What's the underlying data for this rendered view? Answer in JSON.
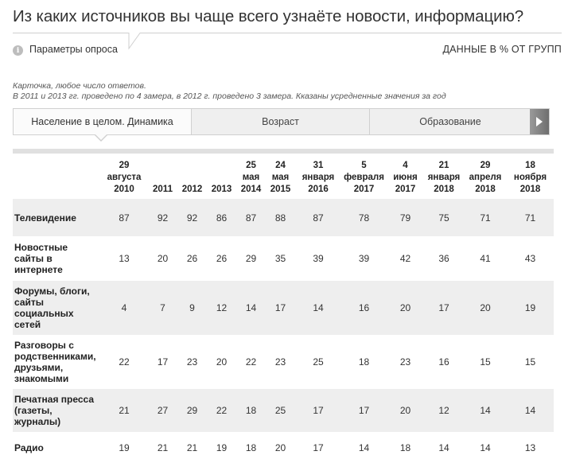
{
  "header": {
    "title": "Из каких источников вы чаще всего узнаёте новости, информацию?"
  },
  "params": {
    "info_icon": "i",
    "label": "Параметры опроса",
    "data_label": "ДАННЫЕ В % ОТ ГРУПП"
  },
  "note": {
    "line1": "Карточка, любое число ответов.",
    "line2": "В 2011 и 2013 гг. проведено по 4 замера, в 2012 г. проведено 3 замера. Кказаны усредненные значения за год"
  },
  "tabs": [
    {
      "label": "Население в целом. Динамика",
      "active": true
    },
    {
      "label": "Возраст",
      "active": false
    },
    {
      "label": "Образование",
      "active": false
    }
  ],
  "table": {
    "columns": [
      [
        "29",
        "августа",
        "2010"
      ],
      [
        "2011"
      ],
      [
        "2012"
      ],
      [
        "2013"
      ],
      [
        "25",
        "мая",
        "2014"
      ],
      [
        "24",
        "мая",
        "2015"
      ],
      [
        "31",
        "января",
        "2016"
      ],
      [
        "5",
        "февраля",
        "2017"
      ],
      [
        "4",
        "июня",
        "2017"
      ],
      [
        "21",
        "января",
        "2018"
      ],
      [
        "29",
        "апреля",
        "2018"
      ],
      [
        "18",
        "ноября",
        "2018"
      ]
    ],
    "rows": [
      {
        "label": [
          "Телевидение"
        ],
        "values": [
          "87",
          "92",
          "92",
          "86",
          "87",
          "88",
          "87",
          "78",
          "79",
          "75",
          "71",
          "71"
        ]
      },
      {
        "label": [
          "Новостные",
          "сайты в",
          "интернете"
        ],
        "values": [
          "13",
          "20",
          "26",
          "26",
          "29",
          "35",
          "39",
          "39",
          "42",
          "36",
          "41",
          "43"
        ]
      },
      {
        "label": [
          "Форумы, блоги,",
          "сайты",
          "социальных",
          "сетей"
        ],
        "values": [
          "4",
          "7",
          "9",
          "12",
          "14",
          "17",
          "14",
          "16",
          "20",
          "17",
          "20",
          "19"
        ]
      },
      {
        "label": [
          "Разговоры с",
          "родственниками,",
          "друзьями,",
          "знакомыми"
        ],
        "values": [
          "22",
          "17",
          "23",
          "20",
          "22",
          "23",
          "25",
          "18",
          "23",
          "16",
          "15",
          "15"
        ]
      },
      {
        "label": [
          "Печатная пресса",
          "(газеты,",
          "журналы)"
        ],
        "values": [
          "21",
          "27",
          "29",
          "22",
          "18",
          "25",
          "17",
          "17",
          "20",
          "12",
          "14",
          "14"
        ]
      },
      {
        "label": [
          "Радио"
        ],
        "values": [
          "19",
          "21",
          "21",
          "19",
          "18",
          "20",
          "17",
          "14",
          "18",
          "14",
          "14",
          "13"
        ]
      }
    ]
  }
}
